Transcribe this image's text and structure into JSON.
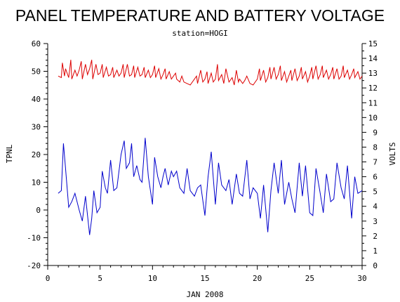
{
  "chart_data": {
    "type": "line",
    "title": "PANEL TEMPERATURE AND BATTERY VOLTAGE",
    "subtitle": "station=HOGI",
    "xlabel": "JAN 2008",
    "ylabel_left": "TPNL",
    "ylabel_right": "VOLTS",
    "xlim": [
      0,
      30
    ],
    "ylim_left": [
      -20,
      60
    ],
    "ylim_right": [
      0,
      15
    ],
    "x_ticks": [
      0,
      5,
      10,
      15,
      20,
      25,
      30
    ],
    "y_ticks_left": [
      -20,
      -10,
      0,
      10,
      20,
      30,
      40,
      50,
      60
    ],
    "y_ticks_right": [
      0,
      1,
      2,
      3,
      4,
      5,
      6,
      7,
      8,
      9,
      10,
      11,
      12,
      13,
      14,
      15
    ],
    "colors": {
      "tpnl": "#0000cc",
      "volts": "#dd0000",
      "axis": "#000000"
    },
    "series": [
      {
        "axis": "left",
        "color": "#0000cc",
        "x": [
          1.0,
          1.3,
          1.5,
          1.7,
          2.0,
          2.3,
          2.6,
          3.0,
          3.3,
          3.6,
          4.0,
          4.2,
          4.4,
          4.7,
          5.0,
          5.2,
          5.5,
          5.7,
          6.0,
          6.3,
          6.6,
          7.0,
          7.3,
          7.5,
          7.8,
          8.0,
          8.2,
          8.5,
          8.8,
          9.0,
          9.3,
          9.6,
          10.0,
          10.2,
          10.5,
          10.8,
          11.0,
          11.2,
          11.5,
          11.8,
          12.0,
          12.3,
          12.6,
          13.0,
          13.3,
          13.6,
          14.0,
          14.3,
          14.6,
          15.0,
          15.3,
          15.6,
          16.0,
          16.3,
          16.6,
          17.0,
          17.3,
          17.6,
          18.0,
          18.3,
          18.6,
          19.0,
          19.3,
          19.6,
          20.0,
          20.3,
          20.6,
          21.0,
          21.3,
          21.6,
          22.0,
          22.3,
          22.6,
          23.0,
          23.3,
          23.6,
          24.0,
          24.3,
          24.6,
          25.0,
          25.3,
          25.6,
          26.0,
          26.3,
          26.6,
          27.0,
          27.3,
          27.6,
          28.0,
          28.3,
          28.6,
          29.0,
          29.3,
          29.6,
          30.0
        ],
        "values": [
          6,
          7,
          24,
          15,
          1,
          3,
          6,
          0,
          -4,
          5,
          -9,
          -3,
          7,
          -1,
          1,
          14,
          8,
          6,
          18,
          7,
          8,
          20,
          25,
          15,
          17,
          24,
          12,
          16,
          11,
          10,
          26,
          12,
          2,
          19,
          12,
          8,
          12,
          15,
          9,
          14,
          12,
          14,
          8,
          6,
          15,
          7,
          5,
          8,
          9,
          -2,
          12,
          21,
          2,
          17,
          9,
          7,
          11,
          2,
          13,
          6,
          5,
          18,
          4,
          8,
          6,
          -3,
          9,
          -8,
          7,
          17,
          6,
          18,
          2,
          10,
          4,
          -1,
          17,
          5,
          16,
          -1,
          -2,
          15,
          6,
          -1,
          13,
          3,
          4,
          17,
          8,
          4,
          16,
          -3,
          12,
          6,
          7
        ]
      },
      {
        "axis": "right",
        "color": "#dd0000",
        "x": [
          1.0,
          1.3,
          1.4,
          1.6,
          1.7,
          2.0,
          2.2,
          2.3,
          2.6,
          2.8,
          3.0,
          3.2,
          3.3,
          3.6,
          3.8,
          4.0,
          4.2,
          4.3,
          4.6,
          4.8,
          5.0,
          5.2,
          5.3,
          5.6,
          5.8,
          6.0,
          6.2,
          6.3,
          6.6,
          6.8,
          7.0,
          7.2,
          7.3,
          7.6,
          7.8,
          8.0,
          8.2,
          8.3,
          8.6,
          8.8,
          9.0,
          9.2,
          9.3,
          9.6,
          9.8,
          10.0,
          10.2,
          10.3,
          10.6,
          10.8,
          11.0,
          11.2,
          11.3,
          11.6,
          11.8,
          12.0,
          12.2,
          12.3,
          12.6,
          12.8,
          13.0,
          13.3,
          13.6,
          14.0,
          14.2,
          14.3,
          14.6,
          14.8,
          15.0,
          15.2,
          15.3,
          15.6,
          15.8,
          16.0,
          16.2,
          16.3,
          16.6,
          16.8,
          17.0,
          17.3,
          17.6,
          17.8,
          18.0,
          18.2,
          18.3,
          18.6,
          18.8,
          19.0,
          19.3,
          19.6,
          20.0,
          20.2,
          20.3,
          20.6,
          20.8,
          21.0,
          21.2,
          21.3,
          21.6,
          21.8,
          22.0,
          22.2,
          22.3,
          22.6,
          22.8,
          23.0,
          23.2,
          23.3,
          23.6,
          23.8,
          24.0,
          24.2,
          24.3,
          24.6,
          24.8,
          25.0,
          25.2,
          25.3,
          25.6,
          25.8,
          26.0,
          26.2,
          26.3,
          26.6,
          26.8,
          27.0,
          27.2,
          27.3,
          27.6,
          27.8,
          28.0,
          28.2,
          28.3,
          28.6,
          28.8,
          29.0,
          29.2,
          29.3,
          29.6,
          29.8,
          30.0
        ],
        "values": [
          12.8,
          12.7,
          13.7,
          12.8,
          13.3,
          12.7,
          13.9,
          12.6,
          13.2,
          12.8,
          13.2,
          13.8,
          12.6,
          13.6,
          12.9,
          13.3,
          13.9,
          12.6,
          13.6,
          12.9,
          13.0,
          13.6,
          12.7,
          13.4,
          12.8,
          12.9,
          13.4,
          12.7,
          13.2,
          12.8,
          13.0,
          13.6,
          12.7,
          13.6,
          12.8,
          12.9,
          13.5,
          12.7,
          13.4,
          12.8,
          12.9,
          13.4,
          12.7,
          13.2,
          12.7,
          12.9,
          13.5,
          12.7,
          13.3,
          12.6,
          12.9,
          13.3,
          12.6,
          13.1,
          12.6,
          12.8,
          13.0,
          12.6,
          12.4,
          12.8,
          12.4,
          12.3,
          12.2,
          12.6,
          12.8,
          12.3,
          13.2,
          12.4,
          12.6,
          13.1,
          12.3,
          13.0,
          12.4,
          12.6,
          13.6,
          12.5,
          12.9,
          12.3,
          13.3,
          12.4,
          12.7,
          12.2,
          13.2,
          12.4,
          12.6,
          12.3,
          12.5,
          12.8,
          12.3,
          12.2,
          12.6,
          13.3,
          12.5,
          13.2,
          12.4,
          12.7,
          13.4,
          12.6,
          13.4,
          12.6,
          12.9,
          13.5,
          12.5,
          13.1,
          12.4,
          12.8,
          13.2,
          12.5,
          13.3,
          12.5,
          12.8,
          13.4,
          12.6,
          13.1,
          12.4,
          12.8,
          13.4,
          12.6,
          13.5,
          12.6,
          12.9,
          13.5,
          12.7,
          13.2,
          12.6,
          12.9,
          13.4,
          12.6,
          13.3,
          12.6,
          12.8,
          13.5,
          12.7,
          13.2,
          12.6,
          12.9,
          13.3,
          12.7,
          13.1,
          12.6,
          12.8
        ]
      }
    ]
  }
}
